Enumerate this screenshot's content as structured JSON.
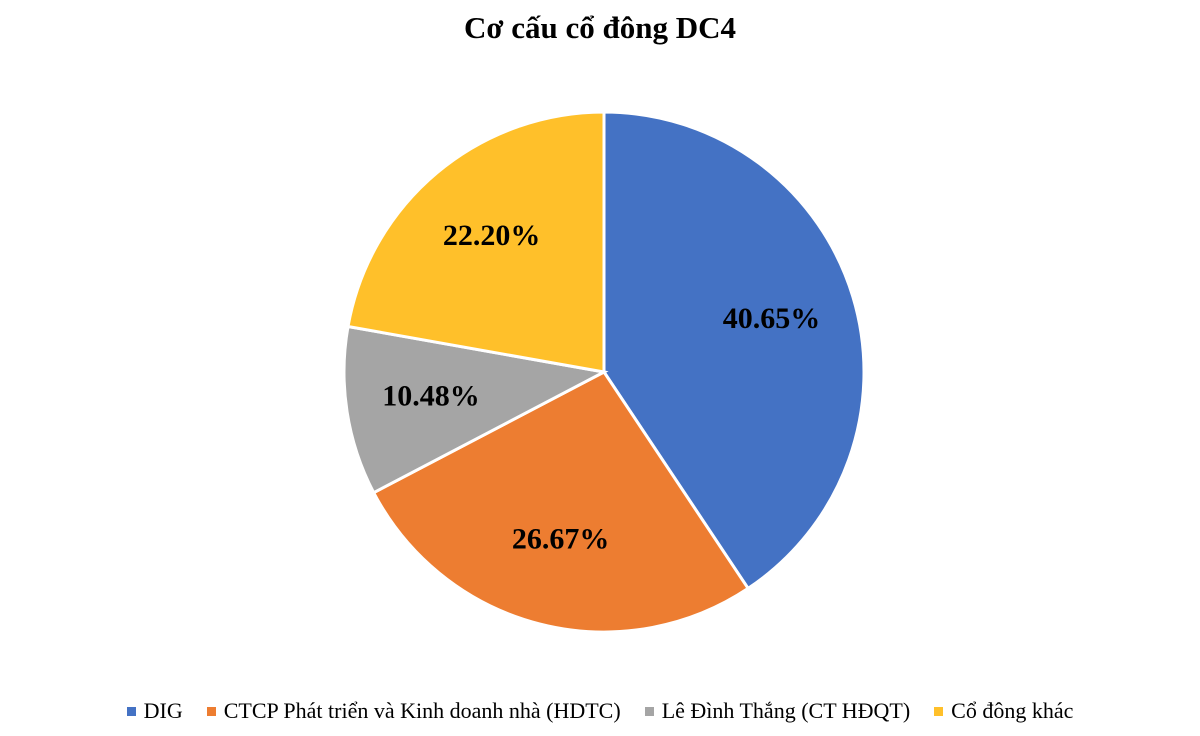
{
  "chart_data": {
    "type": "pie",
    "title": "Cơ cấu cổ đông DC4",
    "categories": [
      "DIG",
      "CTCP Phát triển và Kinh doanh nhà (HDTC)",
      "Lê Đình Thắng (CT HĐQT)",
      "Cổ đông khác"
    ],
    "values": [
      40.65,
      26.67,
      10.48,
      22.2
    ],
    "data_labels": [
      "40.65%",
      "26.67%",
      "10.48%",
      "22.20%"
    ],
    "colors": [
      "#4472C4",
      "#ED7D31",
      "#A5A5A5",
      "#FFC02A"
    ],
    "legend_position": "bottom",
    "start_angle": "top",
    "direction": "clockwise"
  }
}
